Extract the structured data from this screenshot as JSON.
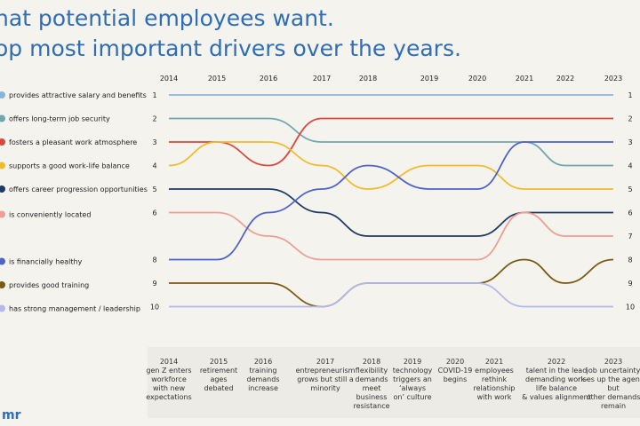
{
  "title_lines": [
    "hat potential employees want.",
    "op most important drivers over the years."
  ],
  "logo": "mr",
  "chart_data": {
    "type": "line",
    "subtype": "bump",
    "x": [
      "2014",
      "2015",
      "2016",
      "2017",
      "2018",
      "2019",
      "2020",
      "2021",
      "2022",
      "2023"
    ],
    "ylim": [
      1,
      10
    ],
    "y_inverted": true,
    "left_rank_labels": [
      "1",
      "2",
      "3",
      "4",
      "5",
      "6",
      "",
      "8",
      "9",
      "10"
    ],
    "right_rank_labels": [
      "1",
      "2",
      "3",
      "4",
      "5",
      "6",
      "7",
      "8",
      "9",
      "10"
    ],
    "series": [
      {
        "name": "provides attractive salary and benefits",
        "color": "#8ab4de",
        "values": [
          1,
          1,
          1,
          1,
          1,
          1,
          1,
          1,
          1,
          1
        ]
      },
      {
        "name": "offers long-term job security",
        "color": "#6fa7ae",
        "values": [
          2,
          2,
          2,
          3,
          3,
          3,
          3,
          3,
          4,
          4
        ]
      },
      {
        "name": "fosters a pleasant work atmosphere",
        "color": "#d9473f",
        "values": [
          3,
          3,
          4,
          2,
          2,
          2,
          2,
          2,
          2,
          2
        ]
      },
      {
        "name": "supports a good work-life balance",
        "color": "#f2bb2c",
        "values": [
          4,
          3,
          3,
          4,
          5,
          4,
          4,
          5,
          5,
          5
        ]
      },
      {
        "name": "offers career progression opportunities",
        "color": "#1f3a63",
        "values": [
          5,
          5,
          5,
          6,
          7,
          7,
          7,
          6,
          6,
          6
        ]
      },
      {
        "name": "is conveniently located",
        "color": "#ee9e95",
        "values": [
          6,
          6,
          7,
          8,
          8,
          8,
          8,
          6,
          7,
          7
        ]
      },
      {
        "name": "is financially healthy",
        "color": "#4f63c6",
        "values": [
          8,
          8,
          6,
          5,
          4,
          5,
          5,
          3,
          3,
          3
        ]
      },
      {
        "name": "provides good training",
        "color": "#7a5a12",
        "values": [
          9,
          9,
          9,
          10,
          9,
          9,
          9,
          8,
          9,
          8
        ]
      },
      {
        "name": "has strong management / leadership",
        "color": "#b3b9ea",
        "values": [
          10,
          10,
          10,
          10,
          9,
          9,
          9,
          10,
          10,
          10
        ]
      }
    ]
  },
  "events": [
    {
      "year": "2014",
      "text": "gen Z enters\nworkforce\nwith new\nexpectations"
    },
    {
      "year": "2015",
      "text": "retirement\nages\ndebated"
    },
    {
      "year": "2016",
      "text": "training\ndemands\nincrease"
    },
    {
      "year": "2017",
      "text": "entrepreneurism\ngrows but still a\nminority"
    },
    {
      "year": "2018",
      "text": "flexibility\ndemands\nmeet\nbusiness\nresistance"
    },
    {
      "year": "2019",
      "text": "technology\ntriggers an\n‘always\non’ culture"
    },
    {
      "year": "2020",
      "text": "COVID-19\nbegins"
    },
    {
      "year": "2021",
      "text": "employees\nrethink\nrelationship\nwith work"
    },
    {
      "year": "2022",
      "text": "talent in the lead\ndemanding work-\nlife balance\n& values alignment"
    },
    {
      "year": "2023",
      "text": "job uncertainty\nrises up the agenda\nbut\nother demands\nremain"
    }
  ]
}
